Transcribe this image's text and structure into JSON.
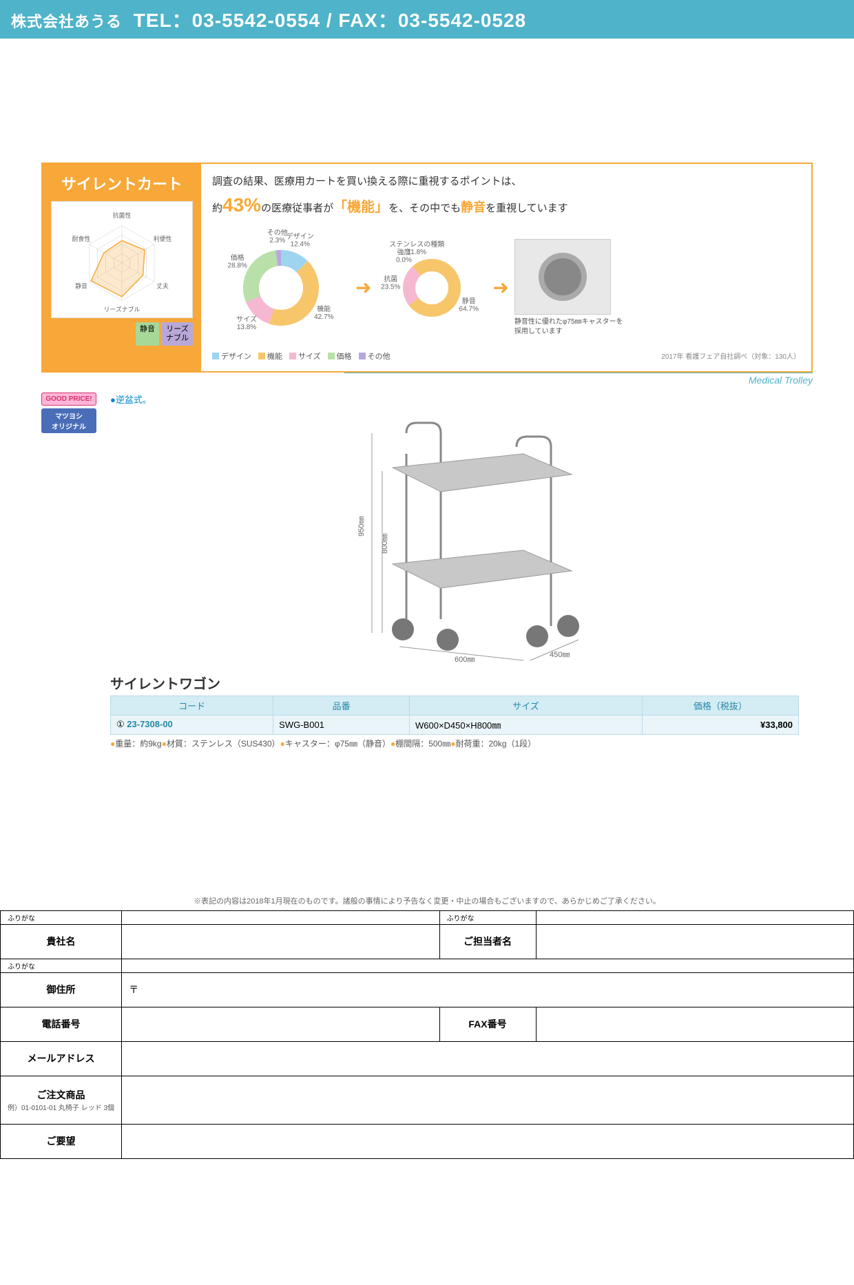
{
  "header": {
    "company": "株式会社あうる",
    "contact": "TEL：03-5542-0554 / FAX：03-5542-0528"
  },
  "infoPanel": {
    "title": "サイレントカート",
    "radar": {
      "axes": [
        "抗菌性",
        "利便性",
        "丈夫",
        "リーズナブル",
        "静音",
        "耐食性"
      ],
      "values": [
        0.6,
        0.7,
        0.65,
        0.9,
        0.95,
        0.55
      ],
      "strokeColor": "#f7a838",
      "fillColor": "rgba(247,168,56,0.25)"
    },
    "badges": [
      {
        "text": "静音",
        "class": "badge-green"
      },
      {
        "text": "リーズ\nナブル",
        "class": "badge-purple"
      }
    ],
    "surveyLine1": "調査の結果、医療用カートを買い換える際に重視するポイントは、",
    "surveyPrefix": "約",
    "surveyPercent": "43%",
    "surveyMid": "の医療従事者が",
    "surveyBracket": "「機能」",
    "surveyMid2": "を、その中でも",
    "surveyEmphasis": "静音",
    "surveySuffix": "を重視しています",
    "donut1": {
      "slices": [
        {
          "label": "デザイン",
          "value": 12.4,
          "color": "#9fd4f0"
        },
        {
          "label": "機能",
          "value": 42.7,
          "color": "#f7c66b"
        },
        {
          "label": "サイズ",
          "value": 13.8,
          "color": "#f5b8d0"
        },
        {
          "label": "価格",
          "value": 28.8,
          "color": "#b8e0a8"
        },
        {
          "label": "その他",
          "value": 2.3,
          "color": "#b8a8e0"
        }
      ]
    },
    "donut2": {
      "slices": [
        {
          "label": "静音",
          "value": 64.7,
          "color": "#f7c66b"
        },
        {
          "label": "抗菌",
          "value": 23.5,
          "color": "#f5b8d0"
        },
        {
          "label": "強度",
          "value": 0.0,
          "color": "#ccc"
        },
        {
          "label": "ステンレスの種類",
          "value": 11.8,
          "color": "#f7c66b"
        }
      ]
    },
    "legend": [
      {
        "label": "デザイン",
        "color": "#9fd4f0"
      },
      {
        "label": "機能",
        "color": "#f7c66b"
      },
      {
        "label": "サイズ",
        "color": "#f5b8d0"
      },
      {
        "label": "価格",
        "color": "#b8e0a8"
      },
      {
        "label": "その他",
        "color": "#b8a8e0"
      }
    ],
    "legendNote": "2017年 看護フェア自社調べ（対象：130人）",
    "casterCaption": "静音性に優れたφ75㎜キャスターを採用しています"
  },
  "product": {
    "category": "Medical Trolley",
    "badges": [
      {
        "text": "GOOD PRICE!",
        "class": "pbadge-pink"
      },
      {
        "text": "マツヨシ\nオリジナル",
        "class": "pbadge-blue"
      }
    ],
    "note": "●逆盆式。",
    "name": "サイレントワゴン",
    "dims": {
      "w": "600㎜",
      "d": "450㎜",
      "h1": "800㎜",
      "h2": "950㎜"
    },
    "tableHeaders": [
      "コード",
      "品番",
      "サイズ",
      "価格（税抜）"
    ],
    "row": {
      "marker": "①",
      "code": "23-7308-00",
      "model": "SWG-B001",
      "size": "W600×D450×H800㎜",
      "price": "¥33,800"
    },
    "details": "●重量：約9kg●材質：ステンレス（SUS430）●キャスター：φ75㎜（静音）●棚間隔：500㎜●耐荷重：20kg（1段）"
  },
  "disclaimer": "※表記の内容は2018年1月現在のものです。諸般の事情により予告なく変更・中止の場合もございますので、あらかじめご了承ください。",
  "orderForm": {
    "furigana": "ふりがな",
    "company": "貴社名",
    "contact": "ご担当者名",
    "address": "御住所",
    "postal": "〒",
    "tel": "電話番号",
    "fax": "FAX番号",
    "email": "メールアドレス",
    "items": "ご注文商品",
    "itemsExample": "例）01-0101-01 丸椅子 レッド 3個",
    "notes": "ご要望"
  }
}
